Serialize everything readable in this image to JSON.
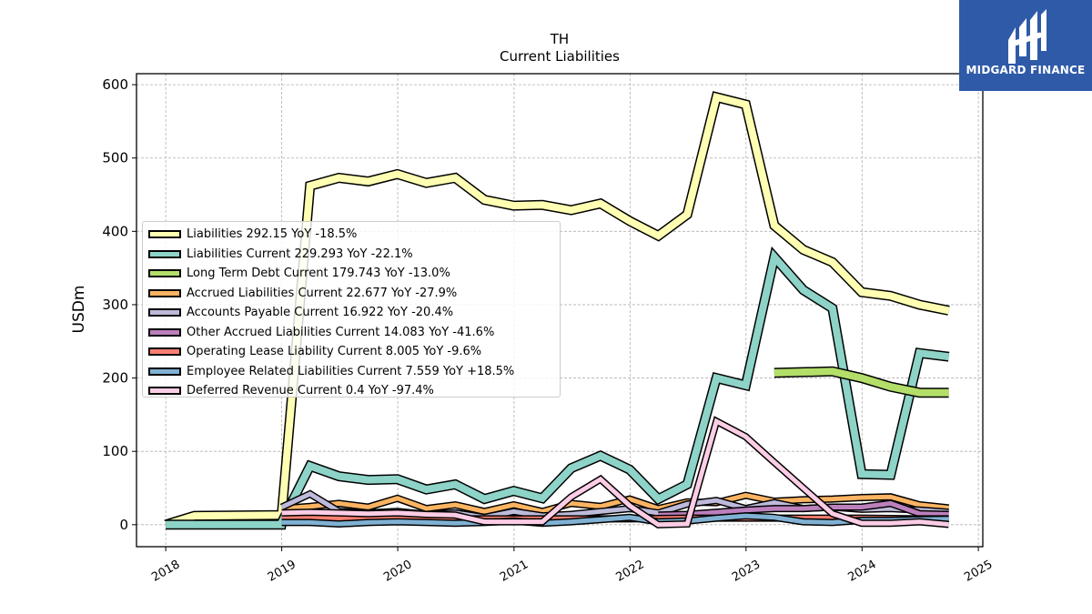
{
  "chart_data": {
    "type": "line",
    "title": "TH",
    "subtitle": "Current  Liabilities",
    "ylabel": "USDm",
    "xlabel": "",
    "ylim": [
      -30,
      615
    ],
    "xlim": [
      "2017-10-01",
      "2025-01-15"
    ],
    "yticks": [
      0,
      100,
      200,
      300,
      400,
      500,
      600
    ],
    "xticks": [
      "2018",
      "2019",
      "2020",
      "2021",
      "2022",
      "2023",
      "2024",
      "2025"
    ],
    "grid": true,
    "legend_position": "upper-left",
    "series": [
      {
        "name": "Liabilities  292.15 YoY -18.5%",
        "color": "#ffffb3",
        "width": 8,
        "points": [
          [
            "2018-01-01",
            0
          ],
          [
            "2018-04-01",
            12
          ],
          [
            "2018-12-31",
            13
          ],
          [
            "2019-01-01",
            14
          ],
          [
            "2019-03-31",
            462
          ],
          [
            "2019-06-30",
            473
          ],
          [
            "2019-09-30",
            468
          ],
          [
            "2019-12-31",
            478
          ],
          [
            "2020-03-31",
            466
          ],
          [
            "2020-06-30",
            473
          ],
          [
            "2020-09-30",
            443
          ],
          [
            "2020-12-31",
            435
          ],
          [
            "2021-03-31",
            436
          ],
          [
            "2021-06-30",
            429
          ],
          [
            "2021-09-30",
            438
          ],
          [
            "2021-12-31",
            414
          ],
          [
            "2022-03-31",
            394
          ],
          [
            "2022-06-30",
            423
          ],
          [
            "2022-09-30",
            583
          ],
          [
            "2022-12-31",
            573
          ],
          [
            "2023-03-31",
            408
          ],
          [
            "2023-06-30",
            375
          ],
          [
            "2023-09-30",
            358
          ],
          [
            "2023-12-31",
            317
          ],
          [
            "2024-03-31",
            312
          ],
          [
            "2024-06-30",
            300
          ],
          [
            "2024-09-30",
            292
          ]
        ]
      },
      {
        "name": "Liabilities Current  229.293 YoY -22.1%",
        "color": "#8dd3c7",
        "width": 8,
        "points": [
          [
            "2018-01-01",
            0
          ],
          [
            "2018-12-31",
            0
          ],
          [
            "2019-01-01",
            3
          ],
          [
            "2019-03-31",
            80
          ],
          [
            "2019-06-30",
            66
          ],
          [
            "2019-09-30",
            61
          ],
          [
            "2019-12-31",
            62
          ],
          [
            "2020-03-31",
            48
          ],
          [
            "2020-06-30",
            55
          ],
          [
            "2020-09-30",
            35
          ],
          [
            "2020-12-31",
            46
          ],
          [
            "2021-03-31",
            36
          ],
          [
            "2021-06-30",
            77
          ],
          [
            "2021-09-30",
            94
          ],
          [
            "2021-12-31",
            75
          ],
          [
            "2022-03-31",
            35
          ],
          [
            "2022-06-30",
            55
          ],
          [
            "2022-09-30",
            200
          ],
          [
            "2022-12-31",
            190
          ],
          [
            "2023-03-31",
            365
          ],
          [
            "2023-06-30",
            320
          ],
          [
            "2023-09-30",
            295
          ],
          [
            "2023-12-31",
            69
          ],
          [
            "2024-03-31",
            68
          ],
          [
            "2024-06-30",
            234
          ],
          [
            "2024-09-30",
            229
          ]
        ]
      },
      {
        "name": "Long Term Debt Current  179.743 YoY -13.0%",
        "color": "#b3de69",
        "width": 8,
        "points": [
          [
            "2023-03-31",
            207
          ],
          [
            "2023-09-30",
            209
          ],
          [
            "2023-12-31",
            200
          ],
          [
            "2024-03-31",
            188
          ],
          [
            "2024-06-30",
            180
          ],
          [
            "2024-09-30",
            180
          ]
        ]
      },
      {
        "name": "Accrued Liabilities Current  22.677 YoY -27.9%",
        "color": "#fdb462",
        "width": 5,
        "points": [
          [
            "2019-01-01",
            22
          ],
          [
            "2019-03-31",
            25
          ],
          [
            "2019-06-30",
            29
          ],
          [
            "2019-09-30",
            24
          ],
          [
            "2019-12-31",
            36
          ],
          [
            "2020-03-31",
            22
          ],
          [
            "2020-06-30",
            27
          ],
          [
            "2020-09-30",
            18
          ],
          [
            "2020-12-31",
            27
          ],
          [
            "2021-03-31",
            18
          ],
          [
            "2021-06-30",
            29
          ],
          [
            "2021-09-30",
            25
          ],
          [
            "2021-12-31",
            35
          ],
          [
            "2022-03-31",
            22
          ],
          [
            "2022-06-30",
            31
          ],
          [
            "2022-09-30",
            30
          ],
          [
            "2022-12-31",
            40
          ],
          [
            "2023-03-31",
            32
          ],
          [
            "2023-06-30",
            34
          ],
          [
            "2023-09-30",
            35
          ],
          [
            "2023-12-31",
            37
          ],
          [
            "2024-03-31",
            38
          ],
          [
            "2024-06-30",
            27
          ],
          [
            "2024-09-30",
            23
          ]
        ]
      },
      {
        "name": "Accounts Payable Current  16.922 YoY -20.4%",
        "color": "#bebada",
        "width": 5,
        "points": [
          [
            "2019-01-01",
            24
          ],
          [
            "2019-03-31",
            42
          ],
          [
            "2019-06-30",
            18
          ],
          [
            "2019-09-30",
            16
          ],
          [
            "2019-12-31",
            18
          ],
          [
            "2020-03-31",
            14
          ],
          [
            "2020-06-30",
            16
          ],
          [
            "2020-09-30",
            10
          ],
          [
            "2020-12-31",
            18
          ],
          [
            "2021-03-31",
            12
          ],
          [
            "2021-06-30",
            14
          ],
          [
            "2021-09-30",
            18
          ],
          [
            "2021-12-31",
            22
          ],
          [
            "2022-03-31",
            16
          ],
          [
            "2022-06-30",
            28
          ],
          [
            "2022-09-30",
            33
          ],
          [
            "2022-12-31",
            22
          ],
          [
            "2023-03-31",
            30
          ],
          [
            "2023-06-30",
            22
          ],
          [
            "2023-09-30",
            24
          ],
          [
            "2023-12-31",
            21
          ],
          [
            "2024-03-31",
            22
          ],
          [
            "2024-06-30",
            20
          ],
          [
            "2024-09-30",
            17
          ]
        ]
      },
      {
        "name": "Other Accrued Liabilities Current  14.083 YoY -41.6%",
        "color": "#bc80bd",
        "width": 5,
        "points": [
          [
            "2022-03-31",
            13
          ],
          [
            "2022-06-30",
            14
          ],
          [
            "2022-09-30",
            17
          ],
          [
            "2022-12-31",
            20
          ],
          [
            "2023-03-31",
            22
          ],
          [
            "2023-06-30",
            22
          ],
          [
            "2023-09-30",
            24
          ],
          [
            "2023-12-31",
            24
          ],
          [
            "2024-03-31",
            29
          ],
          [
            "2024-06-30",
            15
          ],
          [
            "2024-09-30",
            14
          ]
        ]
      },
      {
        "name": "Operating Lease Liability Current  8.005 YoY -9.6%",
        "color": "#fb8072",
        "width": 5,
        "points": [
          [
            "2019-01-01",
            9
          ],
          [
            "2019-06-30",
            9
          ],
          [
            "2019-12-31",
            9
          ],
          [
            "2020-06-30",
            8
          ],
          [
            "2020-12-31",
            8
          ],
          [
            "2021-06-30",
            8
          ],
          [
            "2021-12-31",
            8
          ],
          [
            "2022-06-30",
            9
          ],
          [
            "2022-12-31",
            9
          ],
          [
            "2023-06-30",
            9
          ],
          [
            "2023-12-31",
            9
          ],
          [
            "2024-06-30",
            8
          ],
          [
            "2024-09-30",
            8
          ]
        ]
      },
      {
        "name": "Employee Related Liabilities Current  7.559 YoY +18.5%",
        "color": "#80b1d3",
        "width": 5,
        "points": [
          [
            "2019-01-01",
            3
          ],
          [
            "2019-03-31",
            3
          ],
          [
            "2019-06-30",
            1
          ],
          [
            "2019-09-30",
            3
          ],
          [
            "2019-12-31",
            4
          ],
          [
            "2020-03-31",
            3
          ],
          [
            "2020-06-30",
            2
          ],
          [
            "2020-09-30",
            3
          ],
          [
            "2020-12-31",
            5
          ],
          [
            "2021-03-31",
            2
          ],
          [
            "2021-06-30",
            4
          ],
          [
            "2021-09-30",
            7
          ],
          [
            "2021-12-31",
            10
          ],
          [
            "2022-03-31",
            4
          ],
          [
            "2022-06-30",
            5
          ],
          [
            "2022-09-30",
            9
          ],
          [
            "2022-12-31",
            12
          ],
          [
            "2023-03-31",
            10
          ],
          [
            "2023-06-30",
            4
          ],
          [
            "2023-09-30",
            3
          ],
          [
            "2023-12-31",
            6
          ],
          [
            "2024-03-31",
            6
          ],
          [
            "2024-06-30",
            7
          ],
          [
            "2024-09-30",
            7.6
          ]
        ]
      },
      {
        "name": "Deferred Revenue Current  0.4 YoY -97.4%",
        "color": "#fccde5",
        "width": 5,
        "points": [
          [
            "2019-01-01",
            16
          ],
          [
            "2019-03-31",
            17
          ],
          [
            "2019-06-30",
            16
          ],
          [
            "2019-09-30",
            15
          ],
          [
            "2019-12-31",
            16
          ],
          [
            "2020-03-31",
            14
          ],
          [
            "2020-06-30",
            13
          ],
          [
            "2020-09-30",
            4
          ],
          [
            "2020-12-31",
            4
          ],
          [
            "2021-03-31",
            4
          ],
          [
            "2021-06-30",
            38
          ],
          [
            "2021-09-30",
            62
          ],
          [
            "2021-12-31",
            26
          ],
          [
            "2022-03-31",
            0
          ],
          [
            "2022-06-30",
            1
          ],
          [
            "2022-09-30",
            141
          ],
          [
            "2022-12-31",
            120
          ],
          [
            "2023-03-31",
            85
          ],
          [
            "2023-06-30",
            50
          ],
          [
            "2023-09-30",
            15
          ],
          [
            "2023-12-31",
            2
          ],
          [
            "2024-03-31",
            2
          ],
          [
            "2024-06-30",
            4
          ],
          [
            "2024-09-30",
            0.4
          ]
        ]
      }
    ]
  },
  "logo": {
    "text": "MIDGARD FINANCE",
    "icon": "midgard-logo-icon"
  }
}
